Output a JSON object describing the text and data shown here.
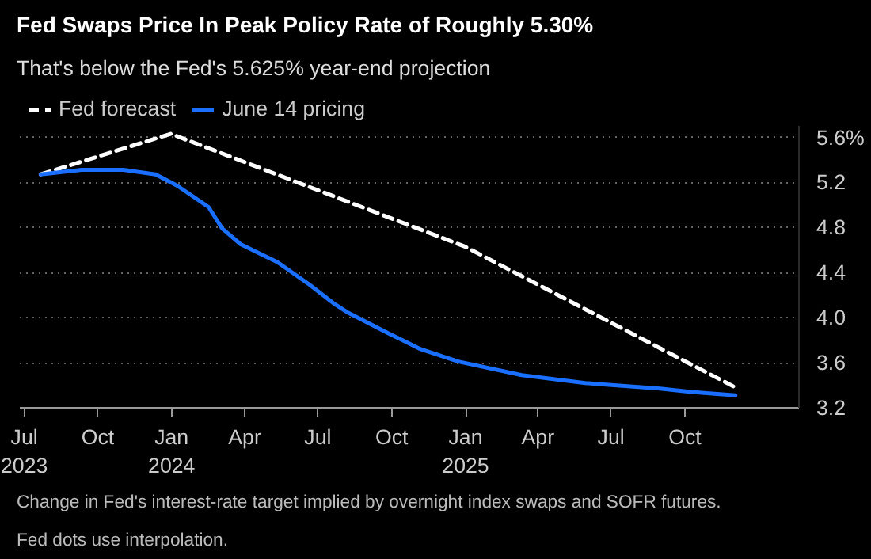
{
  "chart_data": {
    "type": "line",
    "title": "Fed Swaps Price In Peak Policy Rate of Roughly 5.30%",
    "subtitle": "That's below the Fed's 5.625% year-end projection",
    "annotations": [
      "Change in Fed's interest-rate target implied by overnight index swaps and SOFR futures. Fed dots use interpolation."
    ],
    "series": [
      {
        "name": "Fed forecast",
        "color": "#ffffff",
        "line_style": "dashed",
        "x": [
          "2023-07-22",
          "2023-12-31",
          "2024-12-31",
          "2025-12-03"
        ],
        "values": [
          5.27,
          5.63,
          4.63,
          3.38
        ]
      },
      {
        "name": "June 14 pricing",
        "color": "#1a6fff",
        "line_style": "solid",
        "x": [
          "2023-07-22",
          "2023-09-11",
          "2023-11-02",
          "2023-12-12",
          "2024-01-08",
          "2024-02-16",
          "2024-03-04",
          "2024-03-27",
          "2024-05-12",
          "2024-06-21",
          "2024-07-20",
          "2024-08-06",
          "2024-09-27",
          "2024-11-06",
          "2024-12-23",
          "2025-03-12",
          "2025-05-30",
          "2025-08-31",
          "2025-10-09",
          "2025-12-03"
        ],
        "values": [
          5.27,
          5.31,
          5.31,
          5.27,
          5.17,
          4.98,
          4.79,
          4.65,
          4.49,
          4.29,
          4.13,
          4.05,
          3.86,
          3.72,
          3.61,
          3.49,
          3.42,
          3.37,
          3.34,
          3.31
        ]
      }
    ],
    "xlim": [
      "2023-06-26",
      "2026-02-20"
    ],
    "xticks": [
      {
        "value": "2023-07-01",
        "label": "Jul\n2023"
      },
      {
        "value": "2023-10-01",
        "label": "Oct"
      },
      {
        "value": "2024-01-01",
        "label": "Jan\n2024"
      },
      {
        "value": "2024-04-01",
        "label": "Apr"
      },
      {
        "value": "2024-07-01",
        "label": "Jul"
      },
      {
        "value": "2024-10-01",
        "label": "Oct"
      },
      {
        "value": "2025-01-01",
        "label": "Jan\n2025"
      },
      {
        "value": "2025-04-01",
        "label": "Apr"
      },
      {
        "value": "2025-07-01",
        "label": "Jul"
      },
      {
        "value": "2025-10-01",
        "label": "Oct"
      }
    ],
    "ylim": [
      3.2,
      5.7
    ],
    "yticks": [
      3.2,
      3.6,
      {
        "value": 4.0,
        "label": "4.0"
      },
      4.4,
      4.8,
      5.2,
      {
        "value": 5.6,
        "label": "5.6%"
      }
    ],
    "grid": "y",
    "legend": "top left"
  }
}
